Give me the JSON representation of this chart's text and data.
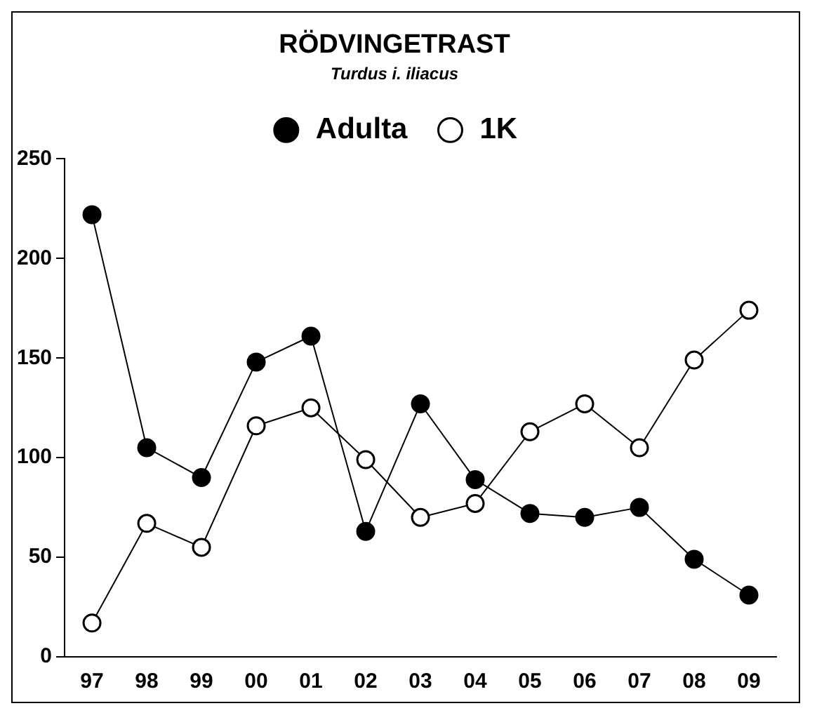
{
  "chart_data": {
    "type": "line",
    "title": "RÖDVINGETRAST",
    "subtitle": "Turdus i. iliacus",
    "categories": [
      "97",
      "98",
      "99",
      "00",
      "01",
      "02",
      "03",
      "04",
      "05",
      "06",
      "07",
      "08",
      "09"
    ],
    "series": [
      {
        "name": "Adulta",
        "color": "#000000",
        "values": [
          222,
          105,
          90,
          148,
          161,
          63,
          127,
          89,
          72,
          70,
          75,
          49,
          31
        ]
      },
      {
        "name": "1K",
        "color": "#000000",
        "values": [
          17,
          67,
          55,
          116,
          125,
          99,
          70,
          77,
          113,
          127,
          105,
          149,
          174
        ]
      }
    ],
    "ylim": [
      0,
      250
    ],
    "yticks": [
      0,
      50,
      100,
      150,
      200,
      250
    ],
    "grid": false,
    "legend": "top",
    "marker": "circle",
    "line_style": "solid"
  }
}
